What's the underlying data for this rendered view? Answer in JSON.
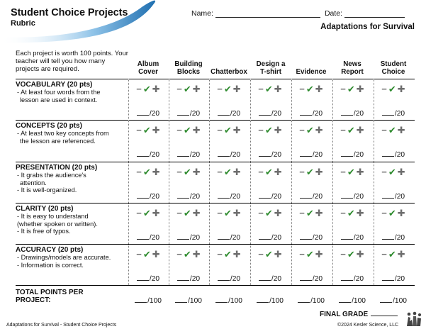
{
  "header": {
    "title": "Student Choice Projects",
    "subtitle": "Rubric",
    "name_label": "Name:",
    "date_label": "Date:",
    "unit_title": "Adaptations for Survival"
  },
  "intro": "Each project is worth 100 points. Your teacher will tell you how many projects are required.",
  "columns": [
    {
      "line1": "Album",
      "line2": "Cover"
    },
    {
      "line1": "Building",
      "line2": "Blocks"
    },
    {
      "line1": "",
      "line2": "Chatterbox"
    },
    {
      "line1": "Design a",
      "line2": "T-shirt"
    },
    {
      "line1": "",
      "line2": "Evidence"
    },
    {
      "line1": "News",
      "line2": "Report"
    },
    {
      "line1": "Student",
      "line2": "Choice"
    }
  ],
  "criteria": [
    {
      "name": "VOCABULARY (20 pts)",
      "b1": "- At least four words from the",
      "b2": "  lesson are used in context.",
      "b3": "",
      "score": "/20"
    },
    {
      "name": "CONCEPTS (20 pts)",
      "b1": "- At least two key concepts from",
      "b2": "  the lesson are referenced.",
      "b3": "",
      "score": "/20"
    },
    {
      "name": "PRESENTATION (20 pts)",
      "b1": "-  It grabs the audience's",
      "b2": "   attention.",
      "b3": "-  It is well-organized.",
      "score": "/20"
    },
    {
      "name": "CLARITY (20 pts)",
      "b1": "- It is easy to understand",
      "b2": " (whether spoken or written).",
      "b3": "- It is free of typos.",
      "score": "/20"
    },
    {
      "name": "ACCURACY (20 pts)",
      "b1": "- Drawings/models are accurate.",
      "b2": "- Information is correct.",
      "b3": "",
      "score": "/20"
    }
  ],
  "marks": {
    "minus": "−",
    "check": "✔",
    "plus": "✚"
  },
  "totals": {
    "label1": "TOTAL POINTS PER",
    "label2": "PROJECT:",
    "score": "/100"
  },
  "final_grade": "FINAL GRADE",
  "footer": {
    "left": "Adaptations for Survival - Student Choice Projects",
    "right": "©2024 Kesler Science, LLC"
  },
  "colors": {
    "swoosh": "#2a7fbf",
    "check": "#2e8b2e",
    "mark_gray": "#6d6d6d"
  },
  "icons": {
    "logo": "kesler-science-logo"
  }
}
